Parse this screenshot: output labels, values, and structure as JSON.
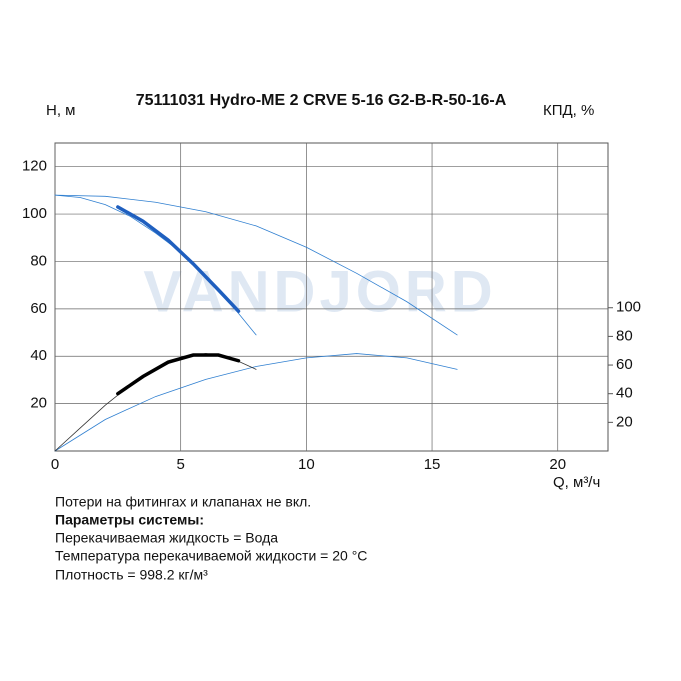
{
  "chart_data": {
    "type": "line",
    "title": "75111031 Hydro-ME 2 CRVE 5-16 G2-B-R-50-16-A",
    "y_label": "H, м",
    "y2_label": "КПД, %",
    "x_label": "Q, м³/ч",
    "watermark": "VANDJORD",
    "xlim": [
      0,
      22
    ],
    "xticks": [
      0,
      5,
      10,
      15,
      20
    ],
    "ylim": [
      0,
      130
    ],
    "yticks": [
      20,
      40,
      60,
      80,
      100,
      120
    ],
    "y2lim": [
      0,
      215
    ],
    "y2ticks": [
      20,
      40,
      60,
      80,
      100
    ],
    "grid": true,
    "series": [
      {
        "color": "#2f7fd0",
        "width": 0.8,
        "x": [
          0,
          2,
          4,
          6,
          8,
          10,
          12,
          14,
          16
        ],
        "values": [
          108,
          107.5,
          105,
          101,
          95,
          86,
          75,
          63,
          49
        ]
      },
      {
        "color": "#2f7fd0",
        "width": 0.8,
        "x": [
          0,
          1,
          2,
          3,
          4,
          5,
          6,
          7,
          8
        ],
        "values": [
          108,
          107,
          104,
          99,
          92,
          84,
          74,
          62,
          49
        ]
      },
      {
        "color": "#1f5fbf",
        "width": 3.5,
        "x": [
          2.5,
          3.5,
          4.5,
          5.5,
          6.5,
          7.3
        ],
        "values": [
          103,
          97,
          89,
          79,
          68,
          59
        ]
      },
      {
        "color": "#2f7fd0",
        "width": 0.8,
        "axis": "y2",
        "x": [
          0,
          2,
          4,
          6,
          8,
          10,
          12,
          14,
          16
        ],
        "values": [
          0,
          22,
          38,
          50,
          59,
          65,
          68,
          65,
          57
        ]
      },
      {
        "color": "#333333",
        "width": 0.8,
        "axis": "y2",
        "x": [
          0,
          1,
          2,
          3,
          4,
          5,
          6,
          7,
          8
        ],
        "values": [
          0,
          16,
          32,
          46,
          57,
          65,
          68,
          65,
          57
        ]
      },
      {
        "color": "#000000",
        "width": 3.5,
        "axis": "y2",
        "x": [
          2.5,
          3.5,
          4.5,
          5.5,
          6.5,
          7.3
        ],
        "values": [
          40,
          52,
          62,
          67,
          67,
          63
        ]
      }
    ]
  },
  "loss_note": "Потери на фитингах и клапанах не вкл.",
  "params_title": "Параметры системы:",
  "params": [
    "Перекачиваемая жидкость = Вода",
    "Температура перекачиваемой жидкости = 20 °C",
    "Плотность = 998.2 кг/м³"
  ]
}
